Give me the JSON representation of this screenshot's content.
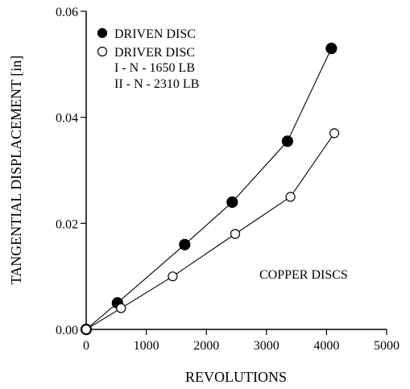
{
  "chart_data": {
    "type": "line",
    "xlabel": "REVOLUTIONS",
    "ylabel": "TANGENTIAL DISPLACEMENT [in]",
    "xlim": [
      0,
      5000
    ],
    "ylim": [
      0,
      0.06
    ],
    "xticks": [
      0,
      1000,
      2000,
      3000,
      4000,
      5000
    ],
    "yticks": [
      0,
      0.02,
      0.04,
      0.06
    ],
    "xtick_labels": [
      "0",
      "1000",
      "2000",
      "3000",
      "4000",
      "5000"
    ],
    "ytick_labels": [
      "0.00",
      "0.02",
      "0.04",
      "0.06"
    ],
    "grid": false,
    "legend_position": "top-left",
    "series": [
      {
        "name": "DRIVEN DISC",
        "marker": "filled-circle",
        "x": [
          0,
          520,
          1640,
          2430,
          3350,
          4080
        ],
        "y": [
          0,
          0.005,
          0.016,
          0.024,
          0.0355,
          0.053
        ]
      },
      {
        "name": "DRIVER DISC",
        "marker": "open-circle",
        "x": [
          0,
          580,
          1440,
          2480,
          3400,
          4130
        ],
        "y": [
          0,
          0.004,
          0.01,
          0.018,
          0.025,
          0.037
        ]
      }
    ],
    "legend_notes": [
      "I - N - 1650 LB",
      "II - N - 2310 LB"
    ],
    "annotation": "COPPER DISCS"
  }
}
